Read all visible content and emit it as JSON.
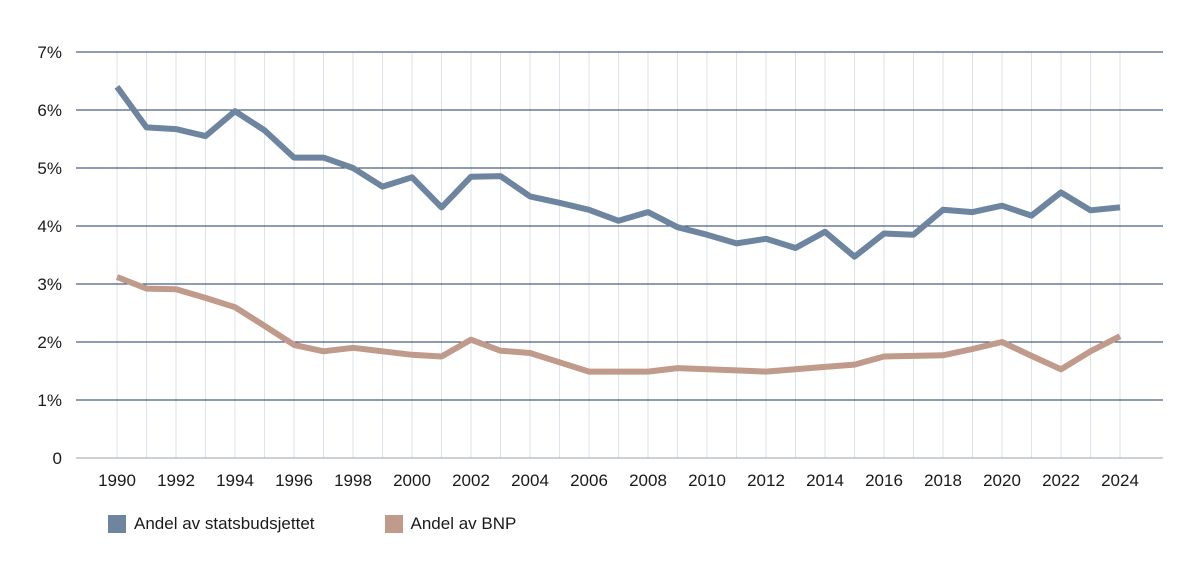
{
  "chart_data": {
    "type": "line",
    "x": [
      1990,
      1991,
      1992,
      1993,
      1994,
      1995,
      1996,
      1997,
      1998,
      1999,
      2000,
      2001,
      2002,
      2003,
      2004,
      2005,
      2006,
      2007,
      2008,
      2009,
      2010,
      2011,
      2012,
      2013,
      2014,
      2015,
      2016,
      2017,
      2018,
      2019,
      2020,
      2021,
      2022,
      2023,
      2024
    ],
    "series": [
      {
        "name": "Andel av statsbudsjettet",
        "color": "#6e859f",
        "values": [
          6.4,
          5.7,
          5.67,
          5.55,
          5.98,
          5.65,
          5.18,
          5.18,
          5.0,
          4.68,
          4.84,
          4.32,
          4.85,
          4.86,
          4.51,
          4.4,
          4.28,
          4.09,
          4.24,
          3.98,
          3.85,
          3.7,
          3.78,
          3.62,
          3.9,
          3.47,
          3.87,
          3.85,
          4.28,
          4.24,
          4.35,
          4.18,
          4.58,
          4.27,
          4.32
        ]
      },
      {
        "name": "Andel av BNP",
        "color": "#c09a8b",
        "values": [
          3.12,
          2.92,
          2.91,
          2.76,
          2.6,
          2.28,
          1.95,
          1.84,
          1.9,
          1.84,
          1.78,
          1.75,
          2.04,
          1.85,
          1.81,
          1.65,
          1.49,
          1.49,
          1.49,
          1.55,
          1.53,
          1.51,
          1.49,
          1.53,
          1.57,
          1.61,
          1.75,
          1.76,
          1.77,
          1.88,
          2.0,
          1.76,
          1.53,
          1.84,
          2.1
        ]
      }
    ],
    "x_ticks": [
      "1990",
      "1992",
      "1994",
      "1996",
      "1998",
      "2000",
      "2002",
      "2004",
      "2006",
      "2008",
      "2010",
      "2012",
      "2014",
      "2016",
      "2018",
      "2020",
      "2022",
      "2024"
    ],
    "y_ticks": [
      {
        "value": 0,
        "label": "0"
      },
      {
        "value": 1,
        "label": "1%"
      },
      {
        "value": 2,
        "label": "2%"
      },
      {
        "value": 3,
        "label": "3%"
      },
      {
        "value": 4,
        "label": "4%"
      },
      {
        "value": 5,
        "label": "5%"
      },
      {
        "value": 6,
        "label": "6%"
      },
      {
        "value": 7,
        "label": "7%"
      }
    ],
    "ylim": [
      0,
      7
    ],
    "xlim": [
      1990,
      2024
    ],
    "grid": true,
    "legend_position": "bottom-left",
    "title": "",
    "xlabel": "",
    "ylabel": ""
  }
}
